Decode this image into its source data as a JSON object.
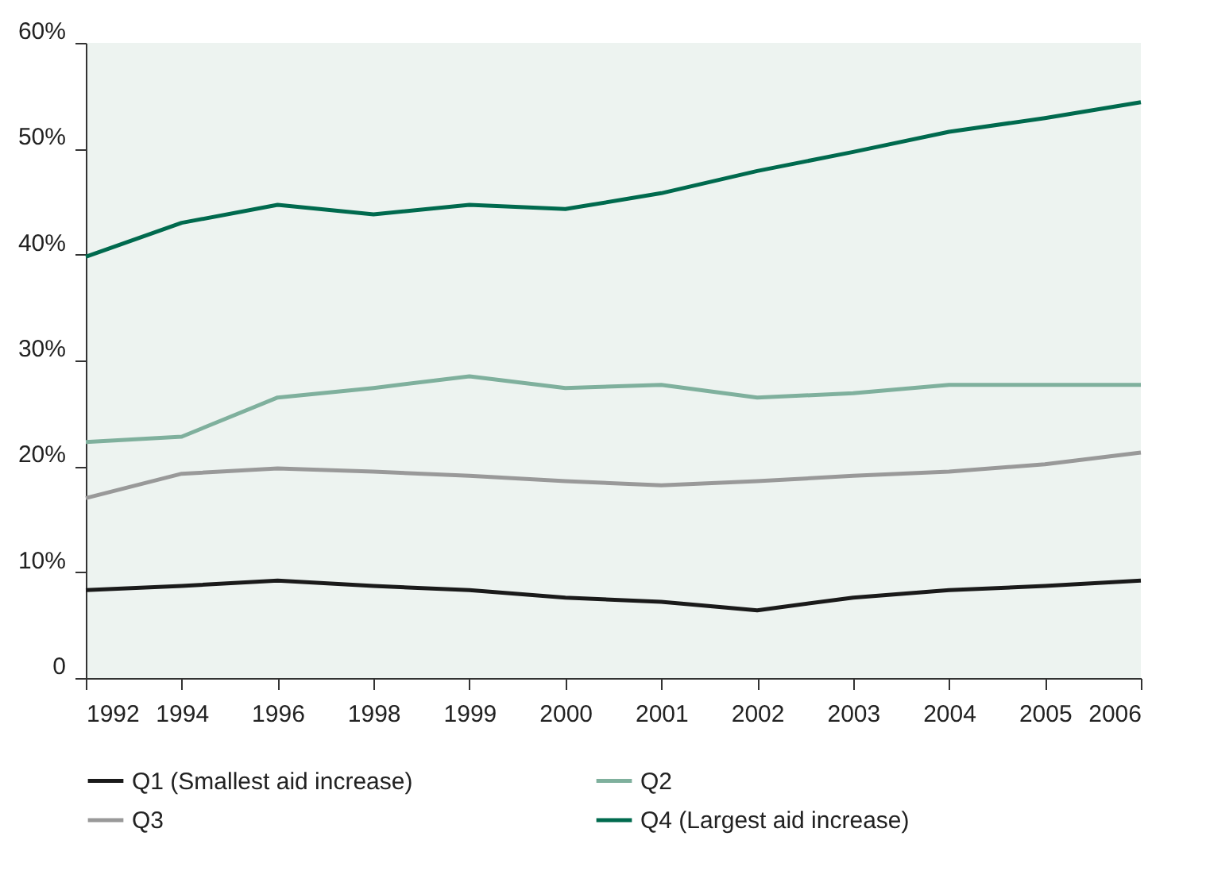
{
  "chart_data": {
    "type": "line",
    "categories": [
      "1992",
      "1994",
      "1996",
      "1998",
      "1999",
      "2000",
      "2001",
      "2002",
      "2003",
      "2004",
      "2005",
      "2006"
    ],
    "series": [
      {
        "name": "Q1 (Smallest aid increase)",
        "color": "#1a1a1a",
        "values": [
          8.3,
          8.7,
          9.2,
          8.7,
          8.3,
          7.6,
          7.2,
          6.4,
          7.6,
          8.3,
          8.7,
          9.2
        ]
      },
      {
        "name": "Q2",
        "color": "#7fb09d",
        "values": [
          22.3,
          22.8,
          26.5,
          27.4,
          28.5,
          27.4,
          27.7,
          26.5,
          26.9,
          27.7,
          27.7,
          27.7
        ]
      },
      {
        "name": "Q3",
        "color": "#999999",
        "values": [
          17.0,
          19.3,
          19.8,
          19.5,
          19.1,
          18.6,
          18.2,
          18.6,
          19.1,
          19.5,
          20.2,
          21.3
        ]
      },
      {
        "name": "Q4 (Largest aid increase)",
        "color": "#006a4e",
        "values": [
          39.8,
          43.0,
          44.7,
          43.8,
          44.7,
          44.3,
          45.8,
          47.9,
          49.7,
          51.6,
          52.9,
          54.4
        ]
      }
    ],
    "ylim": [
      0,
      60
    ],
    "yticks": [
      {
        "value": 0,
        "label": "0"
      },
      {
        "value": 10,
        "label": "10%"
      },
      {
        "value": 20,
        "label": "20%"
      },
      {
        "value": 30,
        "label": "30%"
      },
      {
        "value": 40,
        "label": "40%"
      },
      {
        "value": 50,
        "label": "50%"
      },
      {
        "value": 60,
        "label": "60%"
      }
    ],
    "grid": false,
    "legend": "bottom",
    "marker": "none",
    "line_style": "solid"
  }
}
